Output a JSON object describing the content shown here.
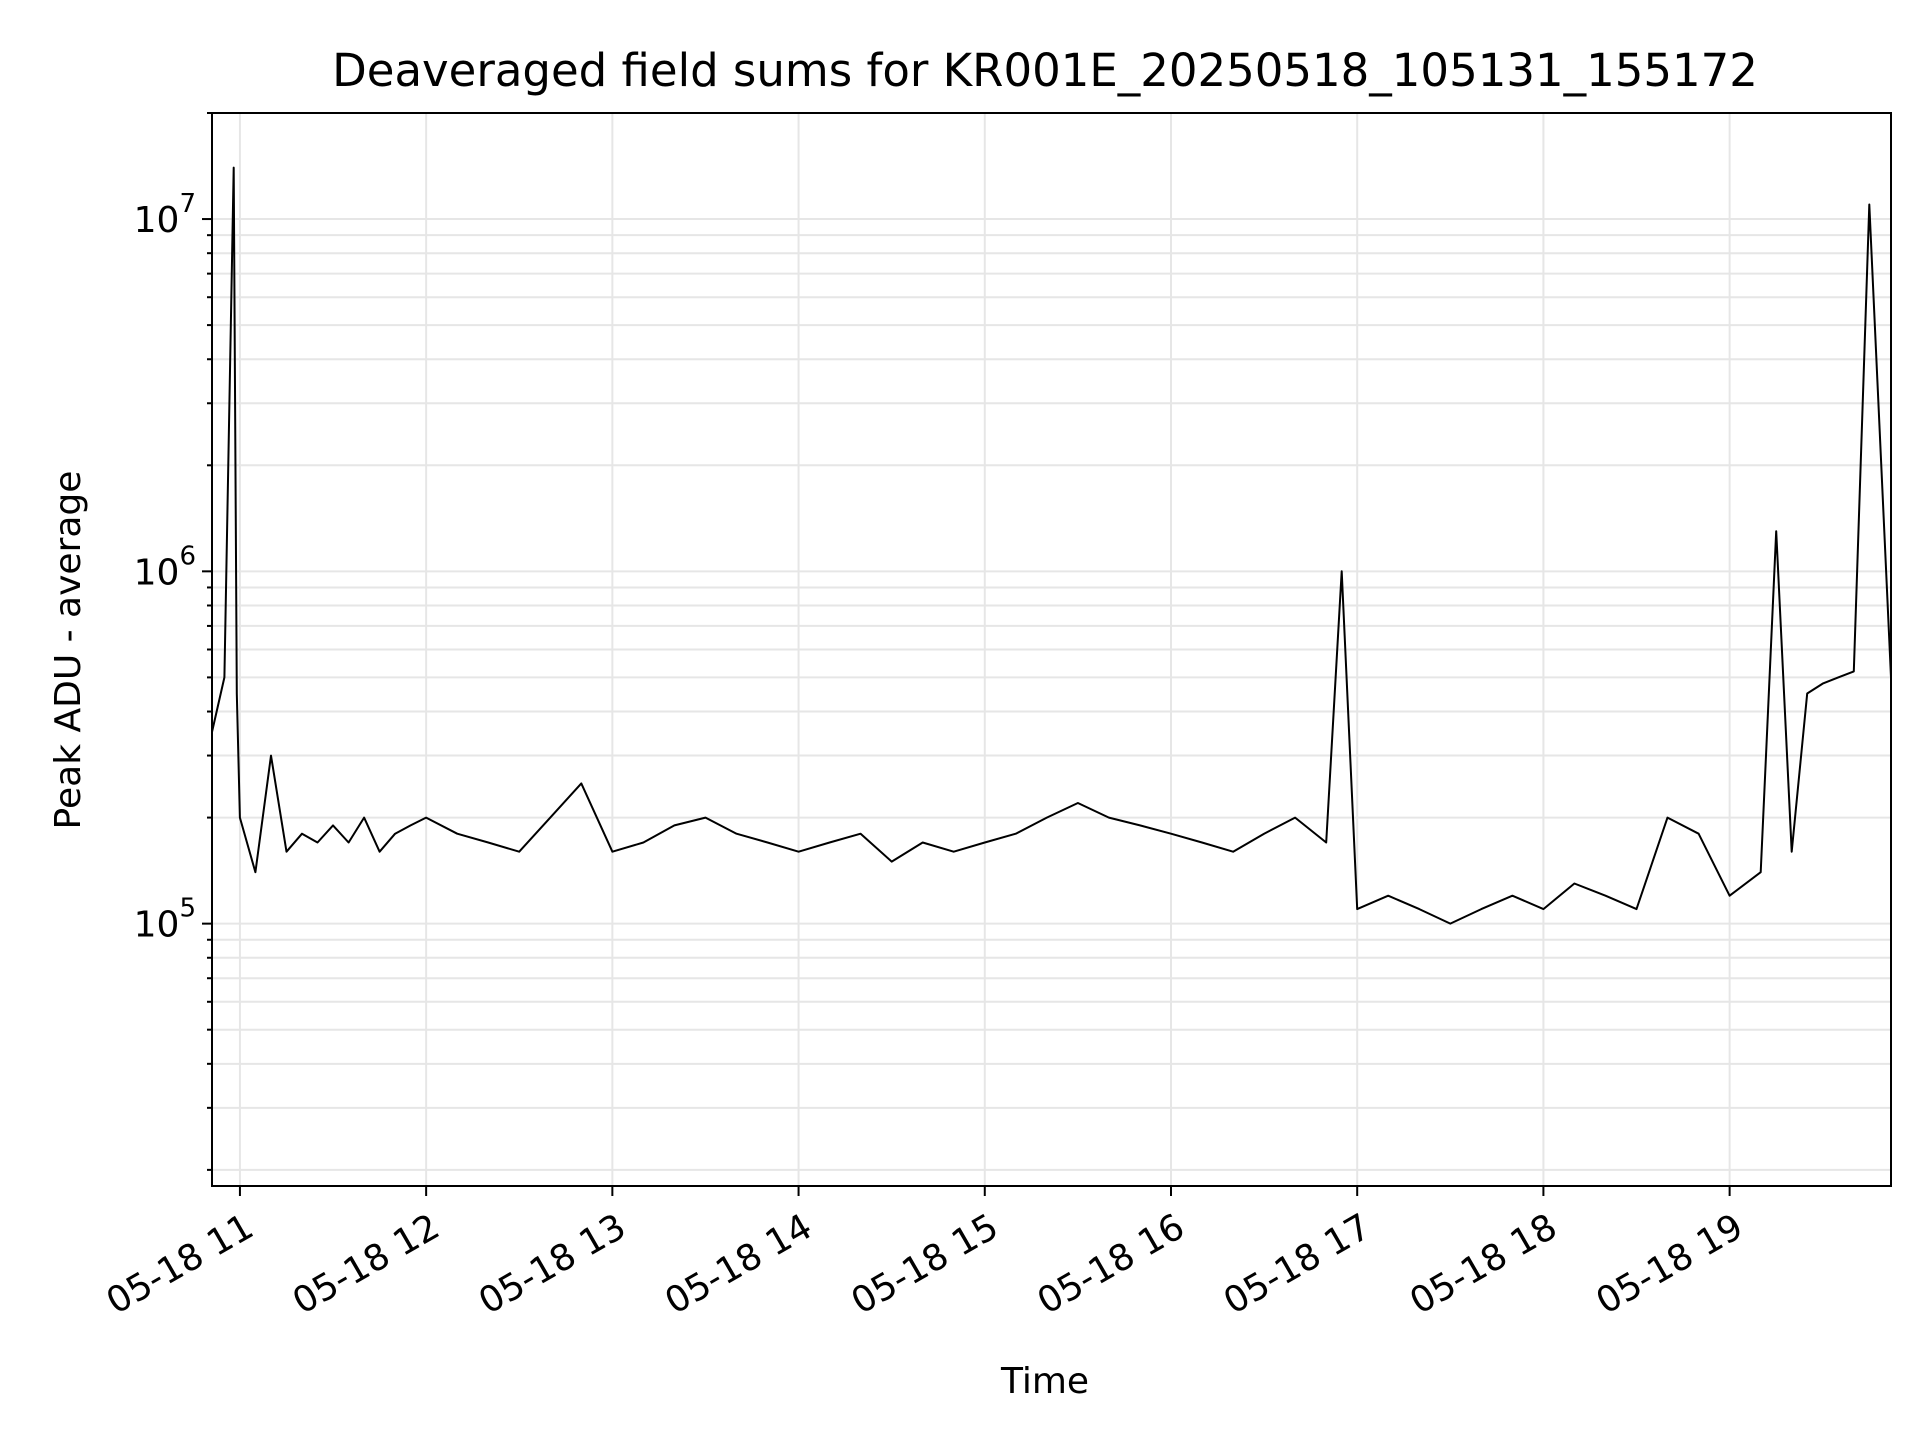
{
  "chart_data": {
    "type": "line",
    "title": "Deaveraged field sums for KR001E_20250518_105131_155172",
    "xlabel": "Time",
    "ylabel": "Peak ADU - average",
    "yscale": "log",
    "ylim": [
      18000,
      20000000
    ],
    "xlim": [
      "2025-05-18 10:51",
      "2025-05-18 19:52"
    ],
    "grid": true,
    "line_color": "#000000",
    "grid_color": "#e6e6e6",
    "x_ticks": [
      "05-18 11",
      "05-18 12",
      "05-18 13",
      "05-18 14",
      "05-18 15",
      "05-18 16",
      "05-18 17",
      "05-18 18",
      "05-18 19"
    ],
    "y_ticks": [
      {
        "value": 100000,
        "base": "10",
        "exp": "5"
      },
      {
        "value": 1000000,
        "base": "10",
        "exp": "6"
      },
      {
        "value": 10000000,
        "base": "10",
        "exp": "7"
      }
    ],
    "series": [
      {
        "x": [
          "2025-05-18 10:51",
          "2025-05-18 10:55",
          "2025-05-18 10:58",
          "2025-05-18 10:59",
          "2025-05-18 11:00",
          "2025-05-18 11:05",
          "2025-05-18 11:10",
          "2025-05-18 11:15",
          "2025-05-18 11:20",
          "2025-05-18 11:25",
          "2025-05-18 11:30",
          "2025-05-18 11:35",
          "2025-05-18 11:40",
          "2025-05-18 11:45",
          "2025-05-18 11:50",
          "2025-05-18 11:55",
          "2025-05-18 12:00",
          "2025-05-18 12:10",
          "2025-05-18 12:20",
          "2025-05-18 12:30",
          "2025-05-18 12:40",
          "2025-05-18 12:50",
          "2025-05-18 13:00",
          "2025-05-18 13:10",
          "2025-05-18 13:20",
          "2025-05-18 13:30",
          "2025-05-18 13:40",
          "2025-05-18 13:50",
          "2025-05-18 14:00",
          "2025-05-18 14:10",
          "2025-05-18 14:20",
          "2025-05-18 14:30",
          "2025-05-18 14:40",
          "2025-05-18 14:50",
          "2025-05-18 15:00",
          "2025-05-18 15:10",
          "2025-05-18 15:20",
          "2025-05-18 15:30",
          "2025-05-18 15:40",
          "2025-05-18 15:50",
          "2025-05-18 16:00",
          "2025-05-18 16:10",
          "2025-05-18 16:20",
          "2025-05-18 16:30",
          "2025-05-18 16:40",
          "2025-05-18 16:50",
          "2025-05-18 16:55",
          "2025-05-18 17:00",
          "2025-05-18 17:10",
          "2025-05-18 17:20",
          "2025-05-18 17:30",
          "2025-05-18 17:40",
          "2025-05-18 17:50",
          "2025-05-18 18:00",
          "2025-05-18 18:10",
          "2025-05-18 18:20",
          "2025-05-18 18:30",
          "2025-05-18 18:40",
          "2025-05-18 18:50",
          "2025-05-18 19:00",
          "2025-05-18 19:10",
          "2025-05-18 19:15",
          "2025-05-18 19:20",
          "2025-05-18 19:25",
          "2025-05-18 19:30",
          "2025-05-18 19:35",
          "2025-05-18 19:40",
          "2025-05-18 19:45",
          "2025-05-18 19:52"
        ],
        "y": [
          350000,
          500000,
          14000000,
          450000,
          200000,
          140000,
          300000,
          160000,
          180000,
          170000,
          190000,
          170000,
          200000,
          160000,
          180000,
          190000,
          200000,
          180000,
          170000,
          160000,
          200000,
          250000,
          160000,
          170000,
          190000,
          200000,
          180000,
          170000,
          160000,
          170000,
          180000,
          150000,
          170000,
          160000,
          170000,
          180000,
          200000,
          220000,
          200000,
          190000,
          180000,
          170000,
          160000,
          180000,
          200000,
          170000,
          1000000,
          110000,
          120000,
          110000,
          100000,
          110000,
          120000,
          110000,
          130000,
          120000,
          110000,
          200000,
          180000,
          120000,
          140000,
          1300000,
          160000,
          450000,
          480000,
          500000,
          520000,
          11000000,
          500000
        ]
      }
    ]
  }
}
